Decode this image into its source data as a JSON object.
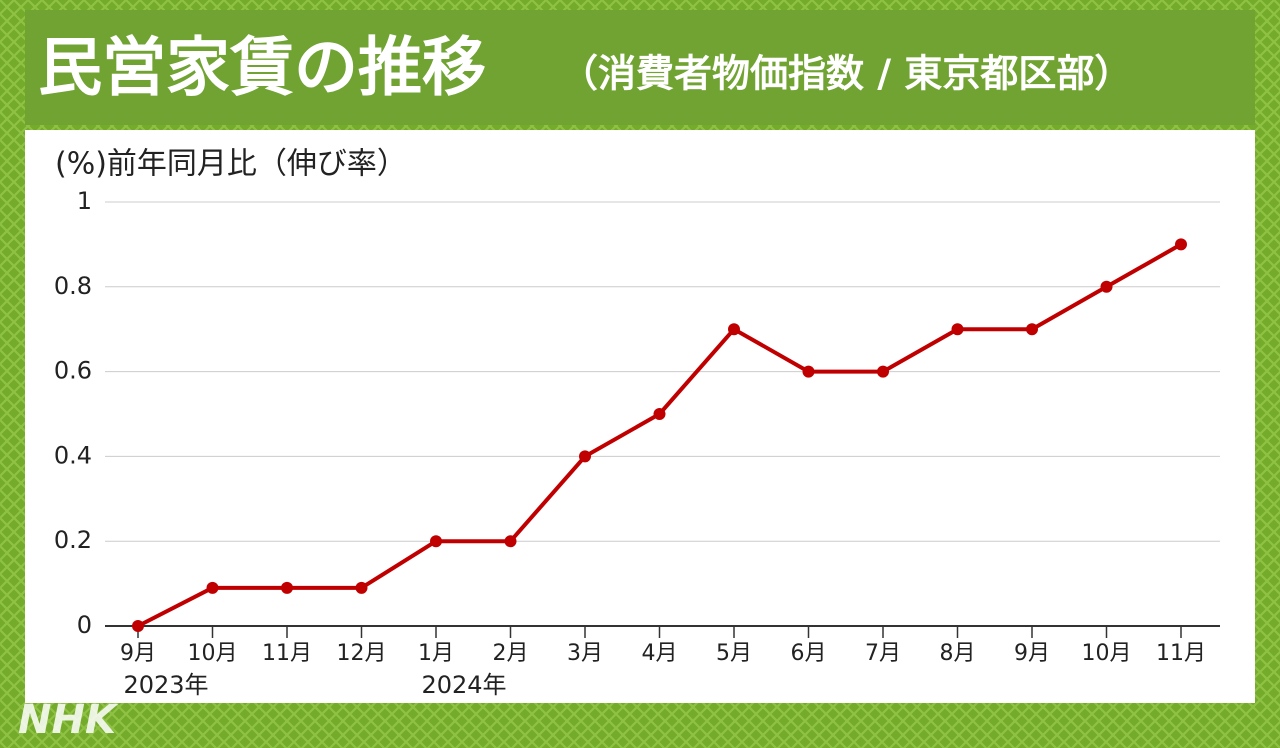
{
  "chart_data": {
    "type": "line",
    "title": "民営家賃の推移",
    "subtitle": "（消費者物価指数 / 東京都区部）",
    "y_label": "(%)前年同月比（伸び率）",
    "source_logo": "NHK",
    "categories": [
      "9月",
      "10月",
      "11月",
      "12月",
      "1月",
      "2月",
      "3月",
      "4月",
      "5月",
      "6月",
      "7月",
      "8月",
      "9月",
      "10月",
      "11月"
    ],
    "year_labels": [
      "2023年",
      null,
      null,
      null,
      "2024年",
      null,
      null,
      null,
      null,
      null,
      null,
      null,
      null,
      null,
      null
    ],
    "values": [
      0,
      0.09,
      0.09,
      0.09,
      0.2,
      0.2,
      0.4,
      0.5,
      0.7,
      0.6,
      0.6,
      0.7,
      0.7,
      0.8,
      0.9
    ],
    "color": "#c00000",
    "ylim": [
      0,
      1
    ],
    "yticks": [
      0,
      0.2,
      0.4,
      0.6,
      0.8,
      1
    ],
    "grid": true
  }
}
